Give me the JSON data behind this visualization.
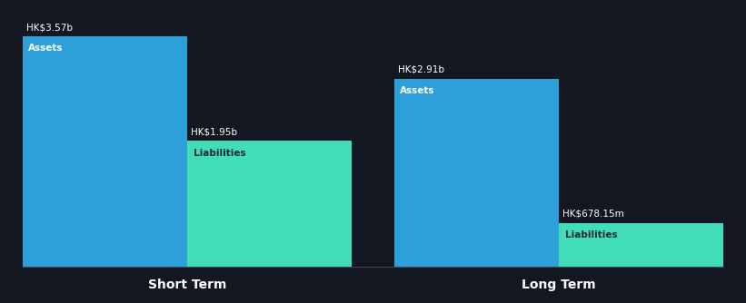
{
  "background_color": "#131722",
  "bar_color_assets": "#2da0d8",
  "bar_color_liabilities": "#40ddb8",
  "text_color_white": "#ffffff",
  "text_color_dark": "#1e2a3a",
  "short_term": {
    "label": "Short Term",
    "assets_value": 3.57,
    "assets_label": "HK$3.57b",
    "assets_bar_label": "Assets",
    "liabilities_value": 1.95,
    "liabilities_label": "HK$1.95b",
    "liabilities_bar_label": "Liabilities"
  },
  "long_term": {
    "label": "Long Term",
    "assets_value": 2.91,
    "assets_label": "HK$2.91b",
    "assets_bar_label": "Assets",
    "liabilities_value": 0.67815,
    "liabilities_label": "HK$678.15m",
    "liabilities_bar_label": "Liabilities"
  },
  "figsize": [
    8.21,
    3.34
  ],
  "dpi": 100
}
